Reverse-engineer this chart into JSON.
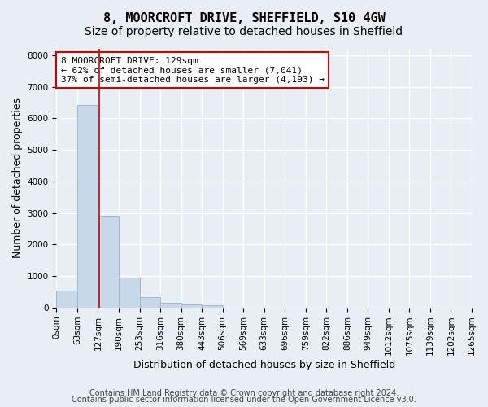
{
  "title_line1": "8, MOORCROFT DRIVE, SHEFFIELD, S10 4GW",
  "title_line2": "Size of property relative to detached houses in Sheffield",
  "xlabel": "Distribution of detached houses by size in Sheffield",
  "ylabel": "Number of detached properties",
  "bar_color": "#c8d8e8",
  "bar_edge_color": "#a0b8cc",
  "bar_heights": [
    550,
    6430,
    2920,
    960,
    330,
    155,
    100,
    65,
    0,
    0,
    0,
    0,
    0,
    0,
    0,
    0,
    0,
    0,
    0,
    0
  ],
  "x_labels": [
    "0sqm",
    "63sqm",
    "127sqm",
    "190sqm",
    "253sqm",
    "316sqm",
    "380sqm",
    "443sqm",
    "506sqm",
    "569sqm",
    "633sqm",
    "696sqm",
    "759sqm",
    "822sqm",
    "886sqm",
    "949sqm",
    "1012sqm",
    "1075sqm",
    "1139sqm",
    "1202sqm",
    "1265sqm"
  ],
  "n_bins": 20,
  "bin_width": 63,
  "ylim": [
    0,
    8200
  ],
  "yticks": [
    0,
    1000,
    2000,
    3000,
    4000,
    5000,
    6000,
    7000,
    8000
  ],
  "vline_x": 129,
  "vline_color": "#cc0000",
  "annotation_text": "8 MOORCROFT DRIVE: 129sqm\n← 62% of detached houses are smaller (7,041)\n37% of semi-detached houses are larger (4,193) →",
  "annotation_box_color": "white",
  "annotation_box_edgecolor": "#cc0000",
  "footer_line1": "Contains HM Land Registry data © Crown copyright and database right 2024.",
  "footer_line2": "Contains public sector information licensed under the Open Government Licence v3.0.",
  "background_color": "#e8eef4",
  "plot_bg_color": "#e8eef4",
  "grid_color": "white",
  "title_fontsize": 11,
  "subtitle_fontsize": 10,
  "axis_label_fontsize": 9,
  "tick_fontsize": 7.5,
  "annotation_fontsize": 8,
  "footer_fontsize": 7
}
